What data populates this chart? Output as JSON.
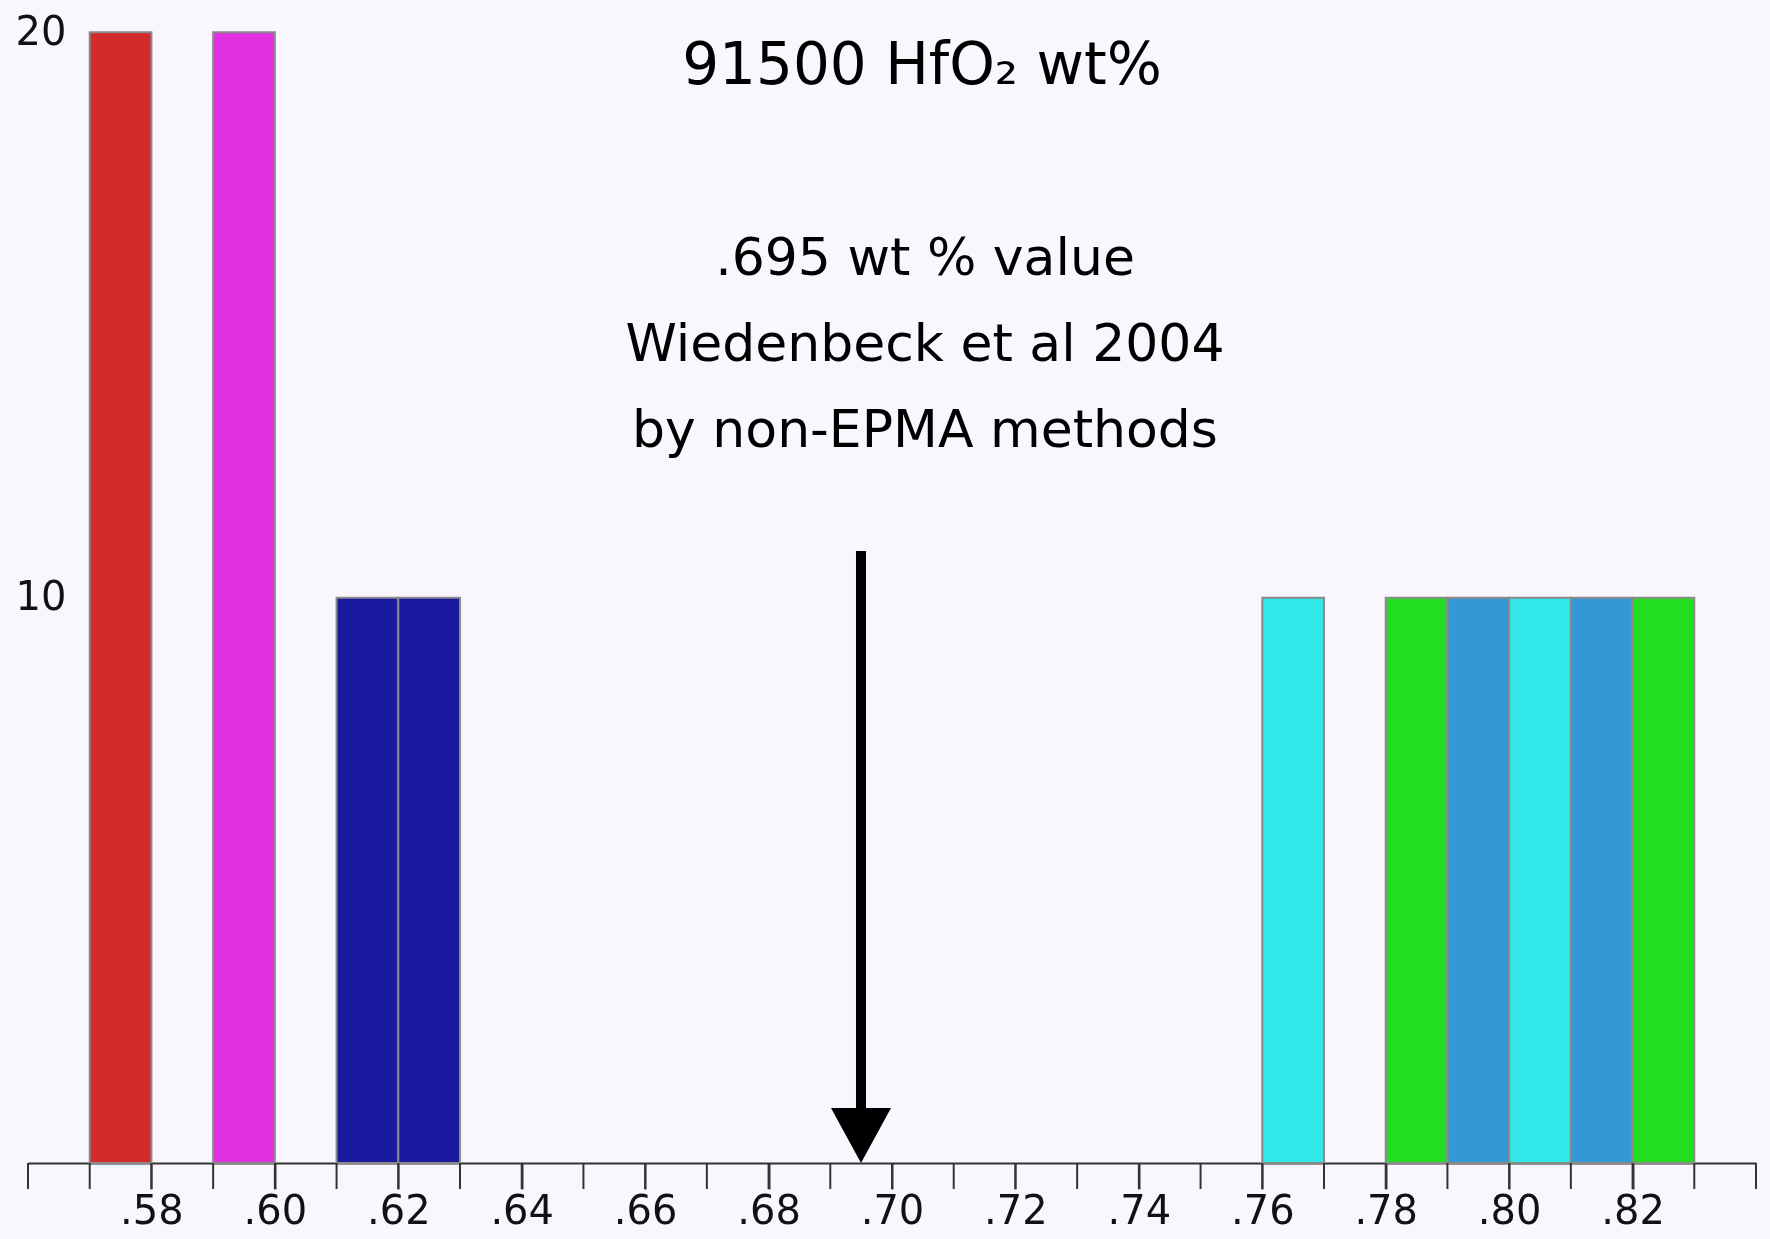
{
  "chart_data": {
    "type": "histogram",
    "title": "91500 HfO₂ wt%",
    "bins": [
      0.57,
      0.58,
      0.59,
      0.6,
      0.61,
      0.62,
      0.63,
      0.64,
      0.65,
      0.66,
      0.67,
      0.68,
      0.69,
      0.7,
      0.71,
      0.72,
      0.73,
      0.74,
      0.75,
      0.76,
      0.77,
      0.78,
      0.79,
      0.8,
      0.81,
      0.82,
      0.83
    ],
    "values": [
      20,
      0,
      20,
      0,
      10,
      10,
      0,
      0,
      0,
      0,
      0,
      0,
      0,
      0,
      0,
      0,
      0,
      0,
      0,
      10,
      0,
      10,
      10,
      10,
      10,
      10
    ],
    "colors": [
      "#d42a2a",
      "#d42a2a",
      "#e030e0",
      "#e030e0",
      "#1a1aa0",
      "#1a1aa0",
      "#1a1aa0",
      "#1a1aa0",
      "#1a1aa0",
      "#1a1aa0",
      "#1a1aa0",
      "#1a1aa0",
      "#1a1aa0",
      "#1a1aa0",
      "#1a1aa0",
      "#1a1aa0",
      "#1a1aa0",
      "#1a1aa0",
      "#1a1aa0",
      "#33e8e8",
      "#33e8e8",
      "#22dd22",
      "#3399d6",
      "#33e8e8",
      "#3399d6",
      "#22dd22"
    ],
    "xlim": [
      0.56,
      0.84
    ],
    "xticks": [
      {
        "value": 0.58,
        "label": ".58"
      },
      {
        "value": 0.6,
        "label": ".60"
      },
      {
        "value": 0.62,
        "label": ".62"
      },
      {
        "value": 0.64,
        "label": ".64"
      },
      {
        "value": 0.66,
        "label": ".66"
      },
      {
        "value": 0.68,
        "label": ".68"
      },
      {
        "value": 0.7,
        "label": ".70"
      },
      {
        "value": 0.72,
        "label": ".72"
      },
      {
        "value": 0.74,
        "label": ".74"
      },
      {
        "value": 0.76,
        "label": ".76"
      },
      {
        "value": 0.78,
        "label": ".78"
      },
      {
        "value": 0.8,
        "label": ".80"
      },
      {
        "value": 0.82,
        "label": ".82"
      }
    ],
    "ylim": [
      0,
      20.5
    ],
    "yticks": [
      10,
      20
    ],
    "annotations": [
      ".695 wt % value\nWiedenbeck et al 2004\nby non-EPMA methods"
    ]
  }
}
